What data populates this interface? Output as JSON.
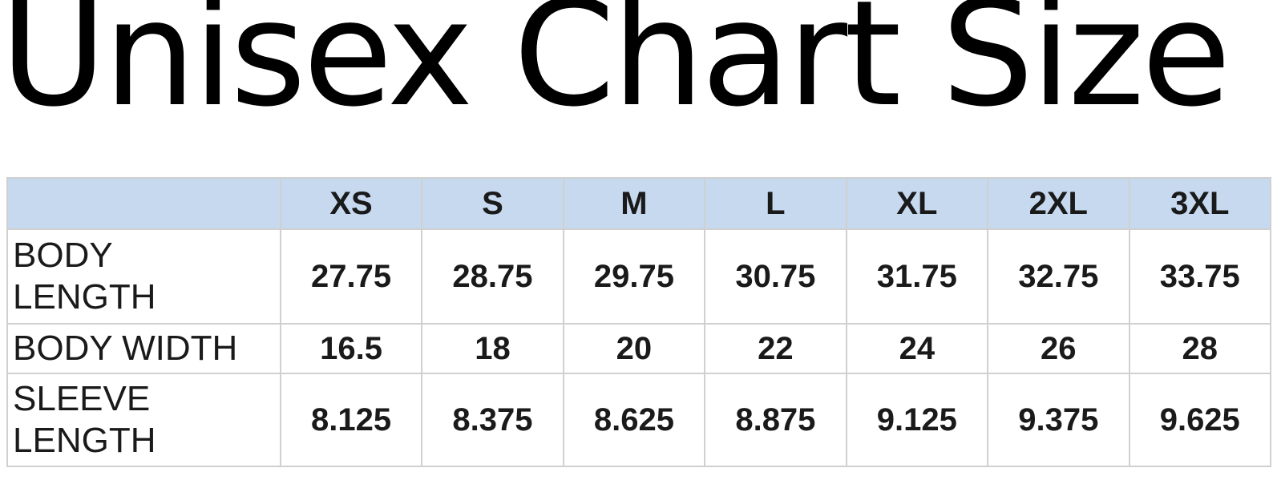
{
  "title": "Unisex Chart Size",
  "table": {
    "corner": "",
    "columns": [
      "XS",
      "S",
      "M",
      "L",
      "XL",
      "2XL",
      "3XL"
    ],
    "rows": [
      {
        "label": "BODY\nLENGTH",
        "values": [
          "27.75",
          "28.75",
          "29.75",
          "30.75",
          "31.75",
          "32.75",
          "33.75"
        ]
      },
      {
        "label": "BODY WIDTH",
        "values": [
          "16.5",
          "18",
          "20",
          "22",
          "24",
          "26",
          "28"
        ]
      },
      {
        "label": "SLEEVE\nLENGTH",
        "values": [
          "8.125",
          "8.375",
          "8.625",
          "8.875",
          "9.125",
          "9.375",
          "9.625"
        ]
      }
    ]
  },
  "colors": {
    "header_background": "#c6d9ef",
    "grid_lines": "#d0d0d0",
    "text": "#1a1a1a"
  }
}
